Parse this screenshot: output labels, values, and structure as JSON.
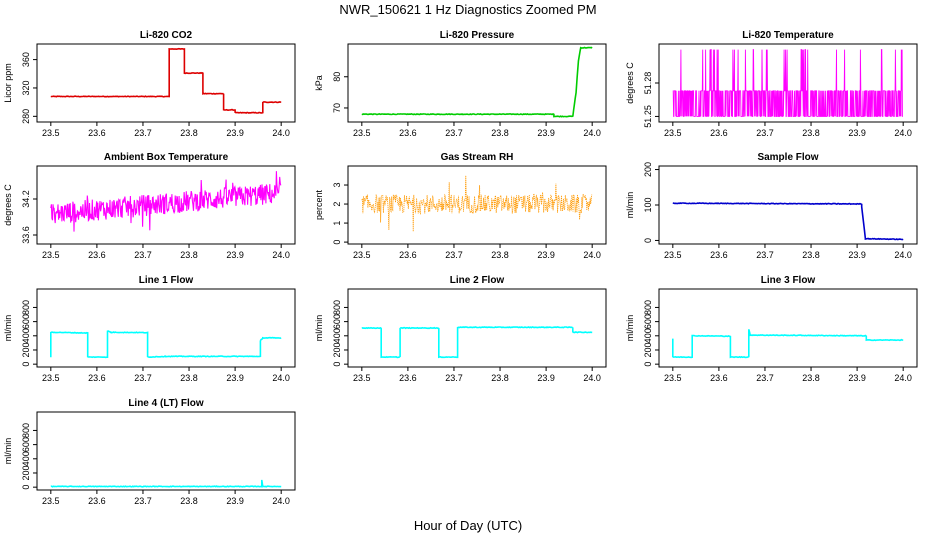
{
  "figure": {
    "title": "NWR_150621  1 Hz Diagnostics Zoomed PM",
    "xlabel": "Hour of Day (UTC)"
  },
  "chart_data": [
    {
      "type": "line",
      "title": "Li-820 CO2",
      "ylabel": "Licor ppm",
      "color": "#dd0000",
      "xlim": [
        23.5,
        24.0
      ],
      "ylim": [
        272,
        382
      ],
      "xticks": [
        "23.5",
        "23.6",
        "23.7",
        "23.8",
        "23.9",
        "24.0"
      ],
      "yticks": [
        280,
        320,
        360
      ],
      "series": [
        {
          "name": "CO2",
          "segments": [
            [
              23.5,
              308
            ],
            [
              23.757,
              308
            ],
            [
              23.757,
              370
            ],
            [
              23.757,
              375
            ],
            [
              23.79,
              375
            ],
            [
              23.79,
              341
            ],
            [
              23.83,
              341
            ],
            [
              23.83,
              312
            ],
            [
              23.875,
              312
            ],
            [
              23.875,
              289
            ],
            [
              23.9,
              289
            ],
            [
              23.9,
              285
            ],
            [
              23.96,
              285
            ],
            [
              23.96,
              300
            ],
            [
              24.0,
              300
            ]
          ]
        }
      ]
    },
    {
      "type": "line",
      "title": "Li-820 Pressure",
      "ylabel": "kPa",
      "color": "#00cc00",
      "xlim": [
        23.5,
        24.0
      ],
      "ylim": [
        65.5,
        90.5
      ],
      "xticks": [
        "23.5",
        "23.6",
        "23.7",
        "23.8",
        "23.9",
        "24.0"
      ],
      "yticks": [
        70,
        80
      ],
      "series": [
        {
          "name": "Pressure",
          "segments": [
            [
              23.5,
              68.0
            ],
            [
              23.917,
              68.0
            ],
            [
              23.917,
              67.3
            ],
            [
              23.958,
              67.3
            ],
            [
              23.965,
              75
            ],
            [
              23.97,
              85
            ],
            [
              23.975,
              89.3
            ],
            [
              24.0,
              89.3
            ]
          ]
        }
      ]
    },
    {
      "type": "line",
      "title": "Li-820 Temperature",
      "ylabel": "degrees C",
      "color": "#ff00ff",
      "xlim": [
        23.5,
        24.0
      ],
      "ylim": [
        51.245,
        51.315
      ],
      "xticks": [
        "23.5",
        "23.6",
        "23.7",
        "23.8",
        "23.9",
        "24.0"
      ],
      "yticks": [
        "51.25",
        "51.28"
      ],
      "series": [
        {
          "name": "Temperature",
          "base": 51.25,
          "upper": 51.273,
          "spike": 51.31,
          "noise": "binary"
        }
      ]
    },
    {
      "type": "line",
      "title": "Ambient Box Temperature",
      "ylabel": "degrees C",
      "color": "#ff00ff",
      "xlim": [
        23.5,
        24.0
      ],
      "ylim": [
        33.45,
        34.75
      ],
      "xticks": [
        "23.5",
        "23.6",
        "23.7",
        "23.8",
        "23.9",
        "24.0"
      ],
      "yticks": [
        "33.6",
        "34.2"
      ],
      "series": [
        {
          "name": "Box Temp",
          "start": 33.95,
          "end": 34.3,
          "noise": 0.18
        }
      ]
    },
    {
      "type": "scatter",
      "title": "Gas Stream RH",
      "ylabel": "percent",
      "color": "#ff9900",
      "xlim": [
        23.5,
        24.0
      ],
      "ylim": [
        -0.1,
        4.0
      ],
      "xticks": [
        "23.5",
        "23.6",
        "23.7",
        "23.8",
        "23.9",
        "24.0"
      ],
      "yticks": [
        0,
        1,
        2,
        3
      ],
      "series": [
        {
          "name": "RH",
          "mean": 2.0,
          "noise": 0.5
        }
      ]
    },
    {
      "type": "line",
      "title": "Sample Flow",
      "ylabel": "ml/min",
      "color": "#0000cc",
      "xlim": [
        23.5,
        24.0
      ],
      "ylim": [
        -10,
        210
      ],
      "xticks": [
        "23.5",
        "23.6",
        "23.7",
        "23.8",
        "23.9",
        "24.0"
      ],
      "yticks": [
        0,
        100,
        200
      ],
      "series": [
        {
          "name": "Sample Flow",
          "segments": [
            [
              23.5,
              105
            ],
            [
              23.91,
              103
            ],
            [
              23.91,
              95
            ],
            [
              23.918,
              5
            ],
            [
              24.0,
              3
            ]
          ]
        }
      ]
    },
    {
      "type": "line",
      "title": "Line 1 Flow",
      "ylabel": "ml/min",
      "color": "#00ffff",
      "xlim": [
        23.5,
        24.0
      ],
      "ylim": [
        -40,
        1060
      ],
      "xticks": [
        "23.5",
        "23.6",
        "23.7",
        "23.8",
        "23.9",
        "24.0"
      ],
      "yticks": [
        0,
        200,
        400,
        600,
        800
      ],
      "series": [
        {
          "name": "Line 1",
          "segments": [
            [
              23.5,
              100
            ],
            [
              23.5,
              450
            ],
            [
              23.58,
              440
            ],
            [
              23.58,
              100
            ],
            [
              23.623,
              100
            ],
            [
              23.623,
              470
            ],
            [
              23.63,
              450
            ],
            [
              23.71,
              445
            ],
            [
              23.71,
              100
            ],
            [
              23.75,
              110
            ],
            [
              23.955,
              110
            ],
            [
              23.955,
              330
            ],
            [
              23.96,
              370
            ],
            [
              24.0,
              370
            ]
          ]
        }
      ]
    },
    {
      "type": "line",
      "title": "Line 2 Flow",
      "ylabel": "ml/min",
      "color": "#00ffff",
      "xlim": [
        23.5,
        24.0
      ],
      "ylim": [
        -40,
        1060
      ],
      "xticks": [
        "23.5",
        "23.6",
        "23.7",
        "23.8",
        "23.9",
        "24.0"
      ],
      "yticks": [
        0,
        200,
        400,
        600,
        800
      ],
      "series": [
        {
          "name": "Line 2",
          "segments": [
            [
              23.5,
              510
            ],
            [
              23.542,
              510
            ],
            [
              23.542,
              100
            ],
            [
              23.583,
              100
            ],
            [
              23.583,
              510
            ],
            [
              23.667,
              510
            ],
            [
              23.667,
              100
            ],
            [
              23.708,
              100
            ],
            [
              23.708,
              520
            ],
            [
              23.958,
              520
            ],
            [
              23.958,
              450
            ],
            [
              24.0,
              450
            ]
          ]
        }
      ]
    },
    {
      "type": "line",
      "title": "Line 3 Flow",
      "ylabel": "ml/min",
      "color": "#00ffff",
      "xlim": [
        23.5,
        24.0
      ],
      "ylim": [
        -40,
        1060
      ],
      "xticks": [
        "23.5",
        "23.6",
        "23.7",
        "23.8",
        "23.9",
        "24.0"
      ],
      "yticks": [
        0,
        200,
        400,
        600,
        800
      ],
      "series": [
        {
          "name": "Line 3",
          "segments": [
            [
              23.5,
              360
            ],
            [
              23.5,
              100
            ],
            [
              23.542,
              100
            ],
            [
              23.542,
              400
            ],
            [
              23.625,
              395
            ],
            [
              23.625,
              100
            ],
            [
              23.665,
              100
            ],
            [
              23.665,
              490
            ],
            [
              23.668,
              410
            ],
            [
              23.92,
              400
            ],
            [
              23.92,
              340
            ],
            [
              24.0,
              340
            ]
          ]
        }
      ]
    },
    {
      "type": "line",
      "title": "Line 4 (LT) Flow",
      "ylabel": "ml/min",
      "color": "#00ffff",
      "xlim": [
        23.5,
        24.0
      ],
      "ylim": [
        -40,
        1060
      ],
      "xticks": [
        "23.5",
        "23.6",
        "23.7",
        "23.8",
        "23.9",
        "24.0"
      ],
      "yticks": [
        0,
        200,
        400,
        600,
        800
      ],
      "series": [
        {
          "name": "Line 4",
          "segments": [
            [
              23.5,
              10
            ],
            [
              23.958,
              10
            ],
            [
              23.958,
              100
            ],
            [
              23.96,
              10
            ],
            [
              24.0,
              10
            ]
          ]
        }
      ]
    }
  ]
}
